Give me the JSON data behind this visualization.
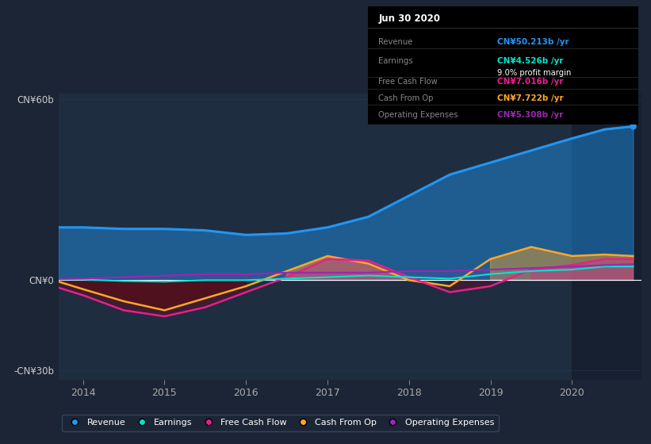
{
  "bg_color": "#1c2535",
  "plot_bg_color": "#1e2d40",
  "plot_bg_dark": "#162030",
  "grid_color": "#2a3d52",
  "years": [
    2013.7,
    2014.0,
    2014.5,
    2015.0,
    2015.5,
    2016.0,
    2016.5,
    2017.0,
    2017.5,
    2018.0,
    2018.5,
    2019.0,
    2019.5,
    2020.0,
    2020.4,
    2020.75
  ],
  "revenue": [
    17.5,
    17.5,
    17.0,
    17.0,
    16.5,
    15.0,
    15.5,
    17.5,
    21.0,
    28.0,
    35.0,
    39.0,
    43.0,
    47.0,
    50.0,
    51.0
  ],
  "earnings": [
    0.3,
    0.2,
    -0.3,
    -0.5,
    0.0,
    0.0,
    0.5,
    1.0,
    1.5,
    1.0,
    0.5,
    2.0,
    3.0,
    3.5,
    4.5,
    4.5
  ],
  "free_cash_flow": [
    -2.5,
    -5.0,
    -10.0,
    -12.0,
    -9.0,
    -4.0,
    1.0,
    7.0,
    6.5,
    1.0,
    -4.0,
    -2.0,
    3.5,
    5.0,
    7.0,
    7.0
  ],
  "cash_from_op": [
    -0.5,
    -3.0,
    -7.0,
    -10.0,
    -6.0,
    -2.0,
    3.0,
    8.0,
    5.5,
    0.0,
    -2.0,
    7.0,
    11.0,
    8.0,
    8.5,
    8.0
  ],
  "operating_expenses": [
    0.3,
    0.5,
    1.0,
    1.5,
    2.0,
    2.0,
    2.5,
    2.5,
    2.5,
    3.0,
    3.0,
    3.5,
    4.0,
    4.5,
    5.0,
    5.3
  ],
  "ylim": [
    -33,
    62
  ],
  "ytick_positions": [
    -30,
    0,
    60
  ],
  "ytick_labels": [
    "-CN¥30b",
    "CN¥0",
    "CN¥60b"
  ],
  "xmin": 2013.7,
  "xmax": 2020.85,
  "xticks": [
    2014,
    2015,
    2016,
    2017,
    2018,
    2019,
    2020
  ],
  "revenue_color": "#2196f3",
  "earnings_color": "#00e5cc",
  "free_cash_flow_color": "#e91e8c",
  "cash_from_op_color": "#ffa726",
  "operating_expenses_color": "#9c27b0",
  "vertical_line_x": 2020.0,
  "tooltip_title": "Jun 30 2020",
  "tooltip_rows": [
    {
      "label": "Revenue",
      "value": "CN¥50.213b /yr",
      "color": "#2196f3",
      "sub": null
    },
    {
      "label": "Earnings",
      "value": "CN¥4.526b /yr",
      "color": "#00e5cc",
      "sub": "9.0% profit margin"
    },
    {
      "label": "Free Cash Flow",
      "value": "CN¥7.016b /yr",
      "color": "#e91e8c",
      "sub": null
    },
    {
      "label": "Cash From Op",
      "value": "CN¥7.722b /yr",
      "color": "#ffa726",
      "sub": null
    },
    {
      "label": "Operating Expenses",
      "value": "CN¥5.308b /yr",
      "color": "#9c27b0",
      "sub": null
    }
  ],
  "legend_items": [
    {
      "label": "Revenue",
      "color": "#2196f3"
    },
    {
      "label": "Earnings",
      "color": "#00e5cc"
    },
    {
      "label": "Free Cash Flow",
      "color": "#e91e8c"
    },
    {
      "label": "Cash From Op",
      "color": "#ffa726"
    },
    {
      "label": "Operating Expenses",
      "color": "#9c27b0"
    }
  ],
  "figsize": [
    8.21,
    5.6
  ],
  "dpi": 100
}
